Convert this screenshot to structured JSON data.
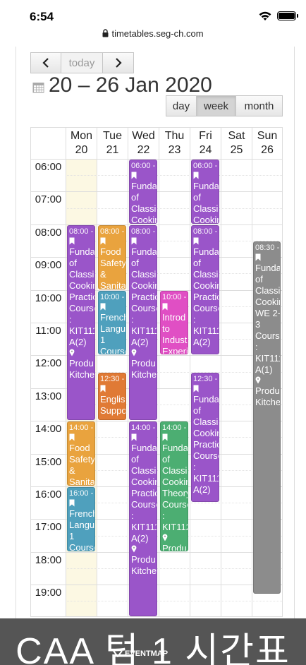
{
  "status_bar": {
    "time": "6:54"
  },
  "browser": {
    "url": "timetables.seg-ch.com"
  },
  "toolbar": {
    "prev_label": "<",
    "today_label": "today",
    "next_label": ">",
    "title": "20 – 26 Jan 2020",
    "views": [
      {
        "label": "day",
        "active": false
      },
      {
        "label": "week",
        "active": true
      },
      {
        "label": "month",
        "active": false
      }
    ]
  },
  "calendar": {
    "days": [
      {
        "name": "Mon",
        "date": "20",
        "today": true
      },
      {
        "name": "Tue",
        "date": "21",
        "today": false
      },
      {
        "name": "Wed",
        "date": "22",
        "today": false
      },
      {
        "name": "Thu",
        "date": "23",
        "today": false
      },
      {
        "name": "Fri",
        "date": "24",
        "today": false
      },
      {
        "name": "Sat",
        "date": "25",
        "today": false
      },
      {
        "name": "Sun",
        "date": "26",
        "today": false
      }
    ],
    "hours": [
      "06:00",
      "07:00",
      "08:00",
      "09:00",
      "10:00",
      "11:00",
      "12:00",
      "13:00",
      "14:00",
      "15:00",
      "16:00",
      "17:00",
      "18:00",
      "19:00"
    ],
    "events": [
      {
        "day": 0,
        "start": 8,
        "end": 14,
        "color": "#9a55c9",
        "time": "08:00 -",
        "lines": [
          "Funda",
          "of",
          "Classic",
          "Cookin",
          "Practic",
          "Course",
          ":",
          "KIT111",
          "A(2)"
        ],
        "location": [
          "Produ",
          "Kitche"
        ]
      },
      {
        "day": 0,
        "start": 14,
        "end": 16,
        "color": "#e9a33e",
        "time": "14:00 -",
        "lines": [
          "Food",
          "Safety",
          "&",
          "Sanita"
        ],
        "location": []
      },
      {
        "day": 0,
        "start": 16,
        "end": 18,
        "color": "#4fa0bd",
        "time": "16:00 -",
        "lines": [
          "French",
          "Langu",
          "1",
          "Course"
        ],
        "location": []
      },
      {
        "day": 1,
        "start": 8,
        "end": 10,
        "color": "#e9a33e",
        "time": "08:00 -",
        "lines": [
          "Food",
          "Safety",
          "&",
          "Sanita"
        ],
        "location": []
      },
      {
        "day": 1,
        "start": 10,
        "end": 12,
        "color": "#4fa0bd",
        "time": "10:00 -",
        "lines": [
          "French",
          "Langu",
          "1",
          "Course"
        ],
        "location": []
      },
      {
        "day": 1,
        "start": 12.5,
        "end": 14,
        "color": "#e07a35",
        "time": "12:30 -",
        "lines": [
          "English",
          "Suppo"
        ],
        "location": []
      },
      {
        "day": 2,
        "start": 6,
        "end": 8,
        "color": "#9a55c9",
        "time": "06:00 -",
        "lines": [
          "Funda",
          "of",
          "Classic",
          "Cookin"
        ],
        "location": []
      },
      {
        "day": 2,
        "start": 8,
        "end": 14,
        "color": "#9a55c9",
        "time": "08:00 -",
        "lines": [
          "Funda",
          "of",
          "Classic",
          "Cookin",
          "Practic",
          "Course",
          ":",
          "KIT111",
          "A(2)"
        ],
        "location": [
          "Produ",
          "Kitche"
        ]
      },
      {
        "day": 2,
        "start": 14,
        "end": 20,
        "color": "#9a55c9",
        "time": "14:00 -",
        "lines": [
          "Funda",
          "of",
          "Classic",
          "Cookin",
          "Practic",
          "Course",
          ":",
          "KIT111",
          "A(2)"
        ],
        "location": [
          "Produ",
          "Kitche"
        ]
      },
      {
        "day": 3,
        "start": 10,
        "end": 12,
        "color": "#e04fc4",
        "time": "10:00 -",
        "lines": [
          "Introd",
          "to",
          "Indust",
          "Experi"
        ],
        "location": []
      },
      {
        "day": 3,
        "start": 14,
        "end": 18,
        "color": "#4cae72",
        "time": "14:00 -",
        "lines": [
          "Funda",
          "of",
          "Classic",
          "Cookin",
          "Theory",
          "Course",
          ":",
          "KIT112"
        ],
        "location": [
          "Produ"
        ]
      },
      {
        "day": 4,
        "start": 6,
        "end": 8,
        "color": "#9a55c9",
        "time": "06:00 -",
        "lines": [
          "Funda",
          "of",
          "Classic",
          "Cookin"
        ],
        "location": []
      },
      {
        "day": 4,
        "start": 8,
        "end": 12,
        "color": "#9a55c9",
        "time": "08:00 -",
        "lines": [
          "Funda",
          "of",
          "Classic",
          "Cookin",
          "Practic",
          "Course",
          ":",
          "KIT111",
          "A(2)"
        ],
        "location": []
      },
      {
        "day": 4,
        "start": 12.5,
        "end": 16.5,
        "color": "#9a55c9",
        "time": "12:30 -",
        "lines": [
          "Funda",
          "of",
          "Classic",
          "Cookin",
          "Practic",
          "Course",
          ":",
          "KIT111",
          "A(2)"
        ],
        "location": []
      },
      {
        "day": 6,
        "start": 8.5,
        "end": 19.3,
        "color": "#8c8c8c",
        "time": "08:30 -",
        "lines": [
          "Funda",
          "of",
          "Classic",
          "Cookin",
          "WE 2-",
          "3",
          "Course",
          ":",
          "KIT111",
          "A(1)"
        ],
        "location": [
          "Produ",
          "Kitche"
        ]
      }
    ]
  },
  "overlay": {
    "caption": "CAA 텀 1 시간표",
    "brand": "EVENTMAP"
  },
  "colors": {
    "purple": "#9a55c9",
    "orange": "#e9a33e",
    "teal": "#4fa0bd",
    "dark_orange": "#e07a35",
    "magenta": "#e04fc4",
    "green": "#4cae72",
    "gray": "#8c8c8c",
    "today_bg": "#fcf8e3"
  }
}
